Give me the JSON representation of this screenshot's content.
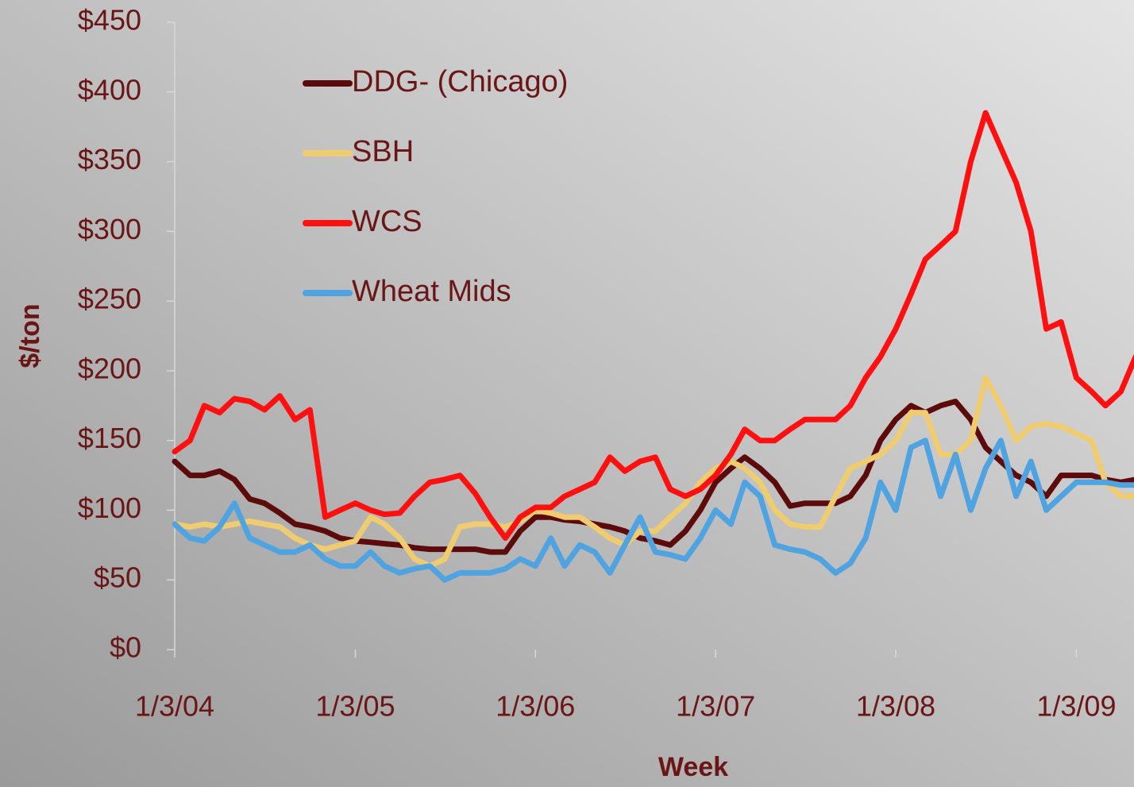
{
  "chart_data": {
    "type": "line",
    "x_label": "Week",
    "y_label": "$/ton",
    "x": [
      "2004-01-03",
      "2004-02-03",
      "2004-03-03",
      "2004-04-03",
      "2004-05-03",
      "2004-06-03",
      "2004-07-03",
      "2004-08-03",
      "2004-09-03",
      "2004-10-03",
      "2004-11-03",
      "2004-12-03",
      "2005-01-03",
      "2005-02-03",
      "2005-03-03",
      "2005-04-03",
      "2005-05-03",
      "2005-06-03",
      "2005-07-03",
      "2005-08-03",
      "2005-09-03",
      "2005-10-03",
      "2005-11-03",
      "2005-12-03",
      "2006-01-03",
      "2006-02-03",
      "2006-03-03",
      "2006-04-03",
      "2006-05-03",
      "2006-06-03",
      "2006-07-03",
      "2006-08-03",
      "2006-09-03",
      "2006-10-03",
      "2006-11-03",
      "2006-12-03",
      "2007-01-03",
      "2007-02-03",
      "2007-03-03",
      "2007-04-03",
      "2007-05-03",
      "2007-06-03",
      "2007-07-03",
      "2007-08-03",
      "2007-09-03",
      "2007-10-03",
      "2007-11-03",
      "2007-12-03",
      "2008-01-03",
      "2008-02-03",
      "2008-03-03",
      "2008-04-03",
      "2008-05-03",
      "2008-06-03",
      "2008-07-03",
      "2008-08-03",
      "2008-09-03",
      "2008-10-03",
      "2008-11-03",
      "2008-12-03",
      "2009-01-03",
      "2009-02-03",
      "2009-03-03",
      "2009-04-03",
      "2009-05-03"
    ],
    "series": [
      {
        "name": "DDG- (Chicago)",
        "color": "#5c0a0a",
        "values": [
          135,
          125,
          125,
          128,
          122,
          108,
          105,
          98,
          90,
          88,
          85,
          80,
          78,
          77,
          76,
          75,
          73,
          72,
          72,
          72,
          72,
          70,
          70,
          85,
          95,
          95,
          93,
          92,
          90,
          88,
          85,
          80,
          78,
          75,
          85,
          100,
          120,
          130,
          138,
          130,
          120,
          103,
          105,
          105,
          105,
          110,
          125,
          150,
          165,
          175,
          170,
          175,
          178,
          165,
          145,
          135,
          125,
          120,
          110,
          125,
          125,
          125,
          122,
          120,
          122
        ]
      },
      {
        "name": "SBH",
        "color": "#f0cc70",
        "values": [
          90,
          88,
          90,
          88,
          90,
          92,
          90,
          88,
          80,
          75,
          72,
          75,
          78,
          95,
          90,
          80,
          65,
          60,
          65,
          88,
          90,
          90,
          88,
          92,
          100,
          98,
          95,
          95,
          88,
          80,
          75,
          85,
          85,
          95,
          105,
          120,
          130,
          135,
          130,
          120,
          100,
          90,
          88,
          88,
          110,
          130,
          135,
          140,
          150,
          170,
          170,
          140,
          140,
          150,
          195,
          175,
          150,
          160,
          162,
          160,
          155,
          150,
          120,
          110,
          110
        ]
      },
      {
        "name": "WCS",
        "color": "#ff1010",
        "values": [
          142,
          150,
          175,
          170,
          180,
          178,
          172,
          182,
          165,
          172,
          95,
          100,
          105,
          100,
          97,
          98,
          110,
          120,
          122,
          125,
          112,
          95,
          80,
          95,
          102,
          102,
          110,
          115,
          120,
          138,
          128,
          135,
          138,
          115,
          110,
          115,
          125,
          140,
          158,
          150,
          150,
          158,
          165,
          165,
          165,
          175,
          195,
          210,
          230,
          255,
          280,
          290,
          300,
          350,
          385,
          360,
          335,
          300,
          230,
          235,
          195,
          185,
          175,
          185,
          210
        ]
      },
      {
        "name": "Wheat Mids",
        "color": "#4fa3e0",
        "values": [
          90,
          80,
          78,
          88,
          105,
          80,
          75,
          70,
          70,
          75,
          65,
          60,
          60,
          70,
          60,
          55,
          58,
          60,
          50,
          55,
          55,
          55,
          58,
          65,
          60,
          80,
          60,
          75,
          70,
          55,
          75,
          95,
          70,
          68,
          65,
          80,
          100,
          90,
          120,
          110,
          75,
          72,
          70,
          65,
          55,
          62,
          80,
          120,
          100,
          145,
          150,
          110,
          140,
          100,
          130,
          150,
          110,
          135,
          100,
          110,
          120,
          120,
          120,
          118,
          118
        ]
      }
    ],
    "xlim": [
      "2004-01-03",
      "2009-05-03"
    ],
    "xticks": [
      {
        "value": "2004-01-03",
        "label": "1/3/04"
      },
      {
        "value": "2005-01-03",
        "label": "1/3/05"
      },
      {
        "value": "2006-01-03",
        "label": "1/3/06"
      },
      {
        "value": "2007-01-03",
        "label": "1/3/07"
      },
      {
        "value": "2008-01-03",
        "label": "1/3/08"
      },
      {
        "value": "2009-01-03",
        "label": "1/3/09"
      }
    ],
    "ylim": [
      0,
      450
    ],
    "yticks": [
      {
        "value": 0,
        "label": "$0"
      },
      {
        "value": 50,
        "label": "$50"
      },
      {
        "value": 100,
        "label": "$100"
      },
      {
        "value": 150,
        "label": "$150"
      },
      {
        "value": 200,
        "label": "$200"
      },
      {
        "value": 250,
        "label": "$250"
      },
      {
        "value": 300,
        "label": "$300"
      },
      {
        "value": 350,
        "label": "$350"
      },
      {
        "value": 400,
        "label": "$400"
      },
      {
        "value": 450,
        "label": "$450"
      }
    ],
    "legend": "top-left"
  }
}
